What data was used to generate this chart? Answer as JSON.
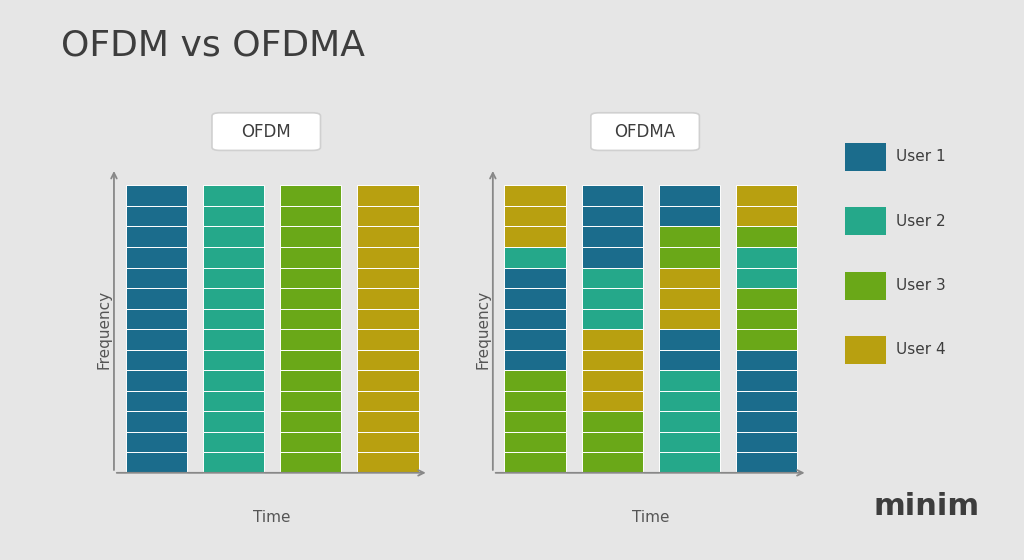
{
  "title": "OFDM vs OFDMA",
  "title_color": "#3d3d3d",
  "bg_color": "#e6e6e6",
  "user_colors": {
    "User 1": "#1b6c8c",
    "User 2": "#25a88a",
    "User 3": "#6aa818",
    "User 4": "#b8a010"
  },
  "legend_labels": [
    "User 1",
    "User 2",
    "User 3",
    "User 4"
  ],
  "ofdm_label": "OFDM",
  "ofdma_label": "OFDMA",
  "time_label": "Time",
  "freq_label": "Frequency",
  "n_subcarriers": 14,
  "ofdm_cols": [
    [
      "User 1",
      "User 1",
      "User 1",
      "User 1",
      "User 1",
      "User 1",
      "User 1",
      "User 1",
      "User 1",
      "User 1",
      "User 1",
      "User 1",
      "User 1",
      "User 1"
    ],
    [
      "User 2",
      "User 2",
      "User 2",
      "User 2",
      "User 2",
      "User 2",
      "User 2",
      "User 2",
      "User 2",
      "User 2",
      "User 2",
      "User 2",
      "User 2",
      "User 2"
    ],
    [
      "User 3",
      "User 3",
      "User 3",
      "User 3",
      "User 3",
      "User 3",
      "User 3",
      "User 3",
      "User 3",
      "User 3",
      "User 3",
      "User 3",
      "User 3",
      "User 3"
    ],
    [
      "User 4",
      "User 4",
      "User 4",
      "User 4",
      "User 4",
      "User 4",
      "User 4",
      "User 4",
      "User 4",
      "User 4",
      "User 4",
      "User 4",
      "User 4",
      "User 4"
    ]
  ],
  "ofdma_col0": [
    "User 3",
    "User 3",
    "User 3",
    "User 3",
    "User 3",
    "User 1",
    "User 1",
    "User 1",
    "User 1",
    "User 1",
    "User 2",
    "User 4",
    "User 4",
    "User 4"
  ],
  "ofdma_col1": [
    "User 3",
    "User 3",
    "User 3",
    "User 4",
    "User 4",
    "User 4",
    "User 4",
    "User 2",
    "User 2",
    "User 2",
    "User 1",
    "User 1",
    "User 1",
    "User 1"
  ],
  "ofdma_col2": [
    "User 2",
    "User 2",
    "User 2",
    "User 2",
    "User 2",
    "User 1",
    "User 1",
    "User 4",
    "User 4",
    "User 4",
    "User 3",
    "User 3",
    "User 1",
    "User 1"
  ],
  "ofdma_col3": [
    "User 1",
    "User 1",
    "User 1",
    "User 1",
    "User 1",
    "User 1",
    "User 3",
    "User 3",
    "User 3",
    "User 2",
    "User 2",
    "User 3",
    "User 4",
    "User 4"
  ],
  "minim_text": "minim",
  "minim_color": "#3d3d3d",
  "figsize": [
    10.24,
    5.6
  ],
  "dpi": 100
}
